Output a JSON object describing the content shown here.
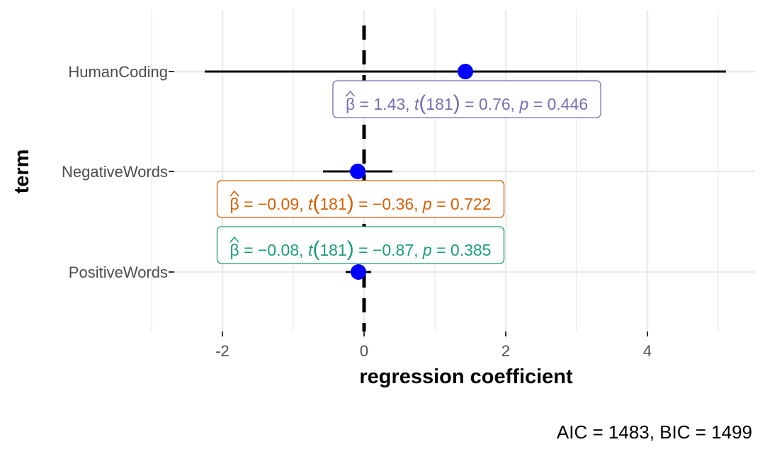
{
  "chart_data": {
    "type": "scatter",
    "title": "",
    "xlabel": "regression coefficient",
    "ylabel": "term",
    "xlim": [
      -2.4,
      5.5
    ],
    "x_ticks": [
      "-2",
      "0",
      "2",
      "4"
    ],
    "grid": true,
    "reference_line_x": 0,
    "point_color": "#0000ff",
    "terms": [
      {
        "name": "HumanCoding",
        "estimate": 1.43,
        "ci": [
          -2.25,
          5.11
        ],
        "label": {
          "beta": "1.43",
          "df": "181",
          "t": "0.76",
          "p": "0.446"
        },
        "label_color": "#7570b3",
        "label_position": "below"
      },
      {
        "name": "NegativeWords",
        "estimate": -0.09,
        "ci": [
          -0.58,
          0.4
        ],
        "label": {
          "beta": "−0.09",
          "df": "181",
          "t": "−0.36",
          "p": "0.722"
        },
        "label_color": "#d95f02",
        "label_position": "below"
      },
      {
        "name": "PositiveWords",
        "estimate": -0.08,
        "ci": [
          -0.26,
          0.1
        ],
        "label": {
          "beta": "−0.08",
          "df": "181",
          "t": "−0.87",
          "p": "0.385"
        },
        "label_color": "#1b9e77",
        "label_position": "above"
      }
    ],
    "caption": "AIC = 1483, BIC = 1499"
  }
}
